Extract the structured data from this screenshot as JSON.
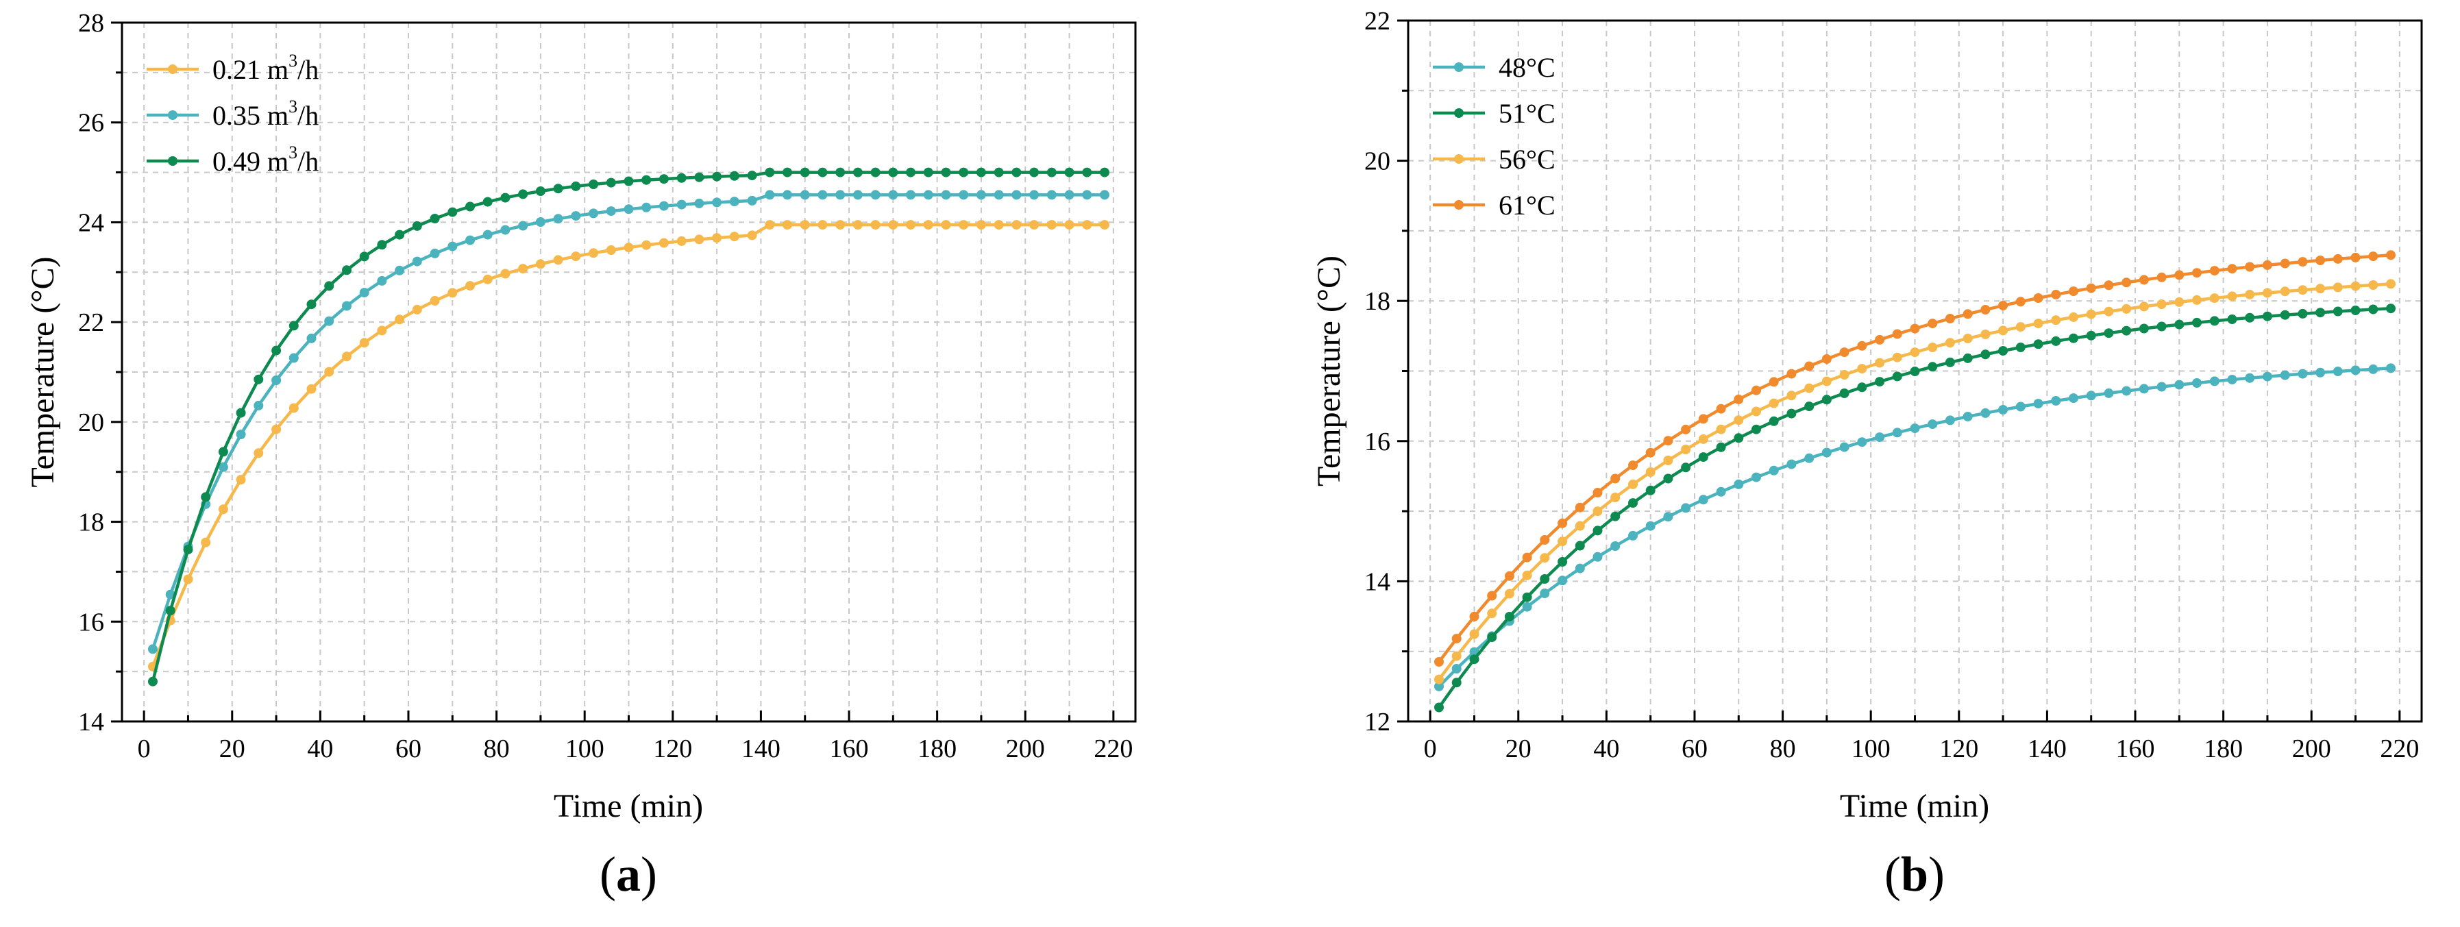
{
  "chart_data": [
    {
      "type": "line",
      "panel_label": "a",
      "xlabel": "Time (min)",
      "ylabel": "Temperature (°C)",
      "xlim": [
        -5,
        225
      ],
      "ylim": [
        14,
        28
      ],
      "xticks": [
        0,
        20,
        40,
        60,
        80,
        100,
        120,
        140,
        160,
        180,
        200,
        220
      ],
      "yticks": [
        14,
        16,
        18,
        20,
        22,
        24,
        26,
        28
      ],
      "grid": true,
      "legend_position": "top-left",
      "series": [
        {
          "name": "0.21 m",
          "unit_sup": "3",
          "unit_rest": "/h",
          "color": "#f7b84b",
          "start": 15.1,
          "end": 23.95,
          "k": 0.0275,
          "x_end": 218,
          "x_sat": 140
        },
        {
          "name": "0.35 m",
          "unit_sup": "3",
          "unit_rest": "/h",
          "color": "#4bb3bd",
          "start": 15.45,
          "end": 24.55,
          "k": 0.032,
          "x_end": 218,
          "x_sat": 140
        },
        {
          "name": "0.49 m",
          "unit_sup": "3",
          "unit_rest": "/h",
          "color": "#0d8a4f",
          "start": 14.8,
          "end": 25.0,
          "k": 0.0375,
          "x_end": 218,
          "x_sat": 140
        }
      ]
    },
    {
      "type": "line",
      "panel_label": "b",
      "xlabel": "Time (min)",
      "ylabel": "Temperature (°C)",
      "xlim": [
        -5,
        225
      ],
      "ylim": [
        12,
        22
      ],
      "xticks": [
        0,
        20,
        40,
        60,
        80,
        100,
        120,
        140,
        160,
        180,
        200,
        220
      ],
      "yticks": [
        12,
        14,
        16,
        18,
        20,
        22
      ],
      "grid": true,
      "legend_position": "top-left",
      "series": [
        {
          "name": "48°C",
          "color": "#4bb3bd",
          "start": 12.5,
          "end": 17.3,
          "k": 0.0135,
          "x_end": 218
        },
        {
          "name": "51°C",
          "color": "#0d8a4f",
          "start": 12.2,
          "end": 18.1,
          "k": 0.0155,
          "x_end": 218
        },
        {
          "name": "56°C",
          "color": "#f7b84b",
          "start": 12.6,
          "end": 18.5,
          "k": 0.0145,
          "x_end": 218
        },
        {
          "name": "61°C",
          "color": "#f08a2c",
          "start": 12.85,
          "end": 18.95,
          "k": 0.014,
          "x_end": 218
        }
      ]
    }
  ]
}
